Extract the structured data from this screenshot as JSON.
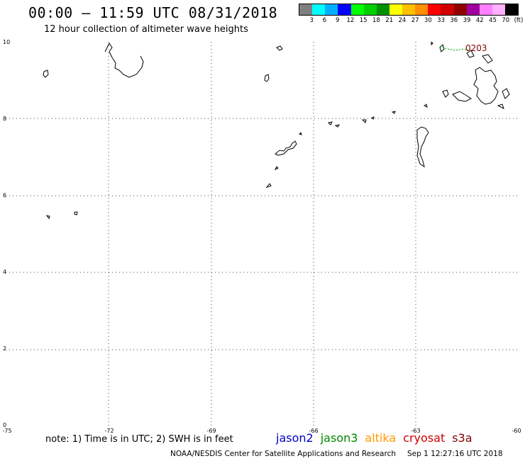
{
  "header": {
    "title": "00:00 – 11:59 UTC 08/31/2018",
    "subtitle": "12 hour collection of altimeter wave heights"
  },
  "legend": {
    "colors": [
      "#808080",
      "#00ffff",
      "#00b0ff",
      "#0000ff",
      "#00ff00",
      "#00d000",
      "#009000",
      "#ffff00",
      "#ffc000",
      "#ff9000",
      "#ff0000",
      "#d00000",
      "#900000",
      "#a000a0",
      "#ff80ff",
      "#ffb0ff",
      "#000000"
    ],
    "labels": [
      "3",
      "6",
      "9",
      "12",
      "15",
      "18",
      "21",
      "24",
      "27",
      "30",
      "33",
      "36",
      "39",
      "42",
      "45",
      "70",
      "(ft)"
    ]
  },
  "map": {
    "lon_ticks": [
      "-75",
      "-72",
      "-69",
      "-66",
      "-63",
      "-60"
    ],
    "lat_ticks": [
      "10",
      "8",
      "6",
      "4",
      "2",
      "0"
    ],
    "track_label": "0203",
    "track_label_color": "#800000",
    "track_color": "#00c000"
  },
  "note": "note:  1) Time is in UTC;  2) SWH is in feet",
  "satellites": [
    {
      "name": "jason2",
      "color": "#0000cc"
    },
    {
      "name": "jason3",
      "color": "#008800"
    },
    {
      "name": "altika",
      "color": "#ff9900"
    },
    {
      "name": "cryosat",
      "color": "#cc0000"
    },
    {
      "name": "s3a",
      "color": "#800000"
    }
  ],
  "footer": {
    "credit": "NOAA/NESDIS Center for Satellite Applications and Research",
    "timestamp": "Sep  1 12:27:16 UTC 2018"
  }
}
